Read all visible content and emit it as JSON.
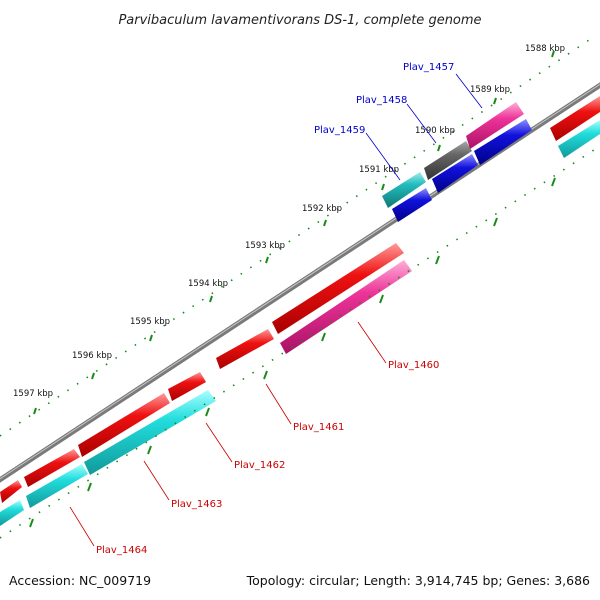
{
  "title": "Parvibaculum lavamentivorans DS-1, complete genome",
  "footer": {
    "accession": "Accession: NC_009719",
    "summary": "Topology: circular; Length: 3,914,745 bp; Genes: 3,686"
  },
  "scale_labels": [
    "1588 kbp",
    "1589 kbp",
    "1590 kbp",
    "1591 kbp",
    "1592 kbp",
    "1593 kbp",
    "1594 kbp",
    "1595 kbp",
    "1596 kbp",
    "1597 kbp"
  ],
  "gene_labels": {
    "forward": [
      "Plav_1457",
      "Plav_1458",
      "Plav_1459"
    ],
    "reverse": [
      "Plav_1460",
      "Plav_1461",
      "Plav_1462",
      "Plav_1463",
      "Plav_1464"
    ]
  },
  "colors": {
    "backbone": "#7a7a7a",
    "forward_label": "#0000cc",
    "reverse_label": "#cc0000",
    "red_feature": "#ee1111",
    "cyan_feature": "#22dddd",
    "magenta_feature": "#ee3399",
    "blue_feature": "#1111dd",
    "teal_feature": "#22bbbb",
    "gray_feature": "#666666",
    "tick": "#1a8a1a"
  }
}
